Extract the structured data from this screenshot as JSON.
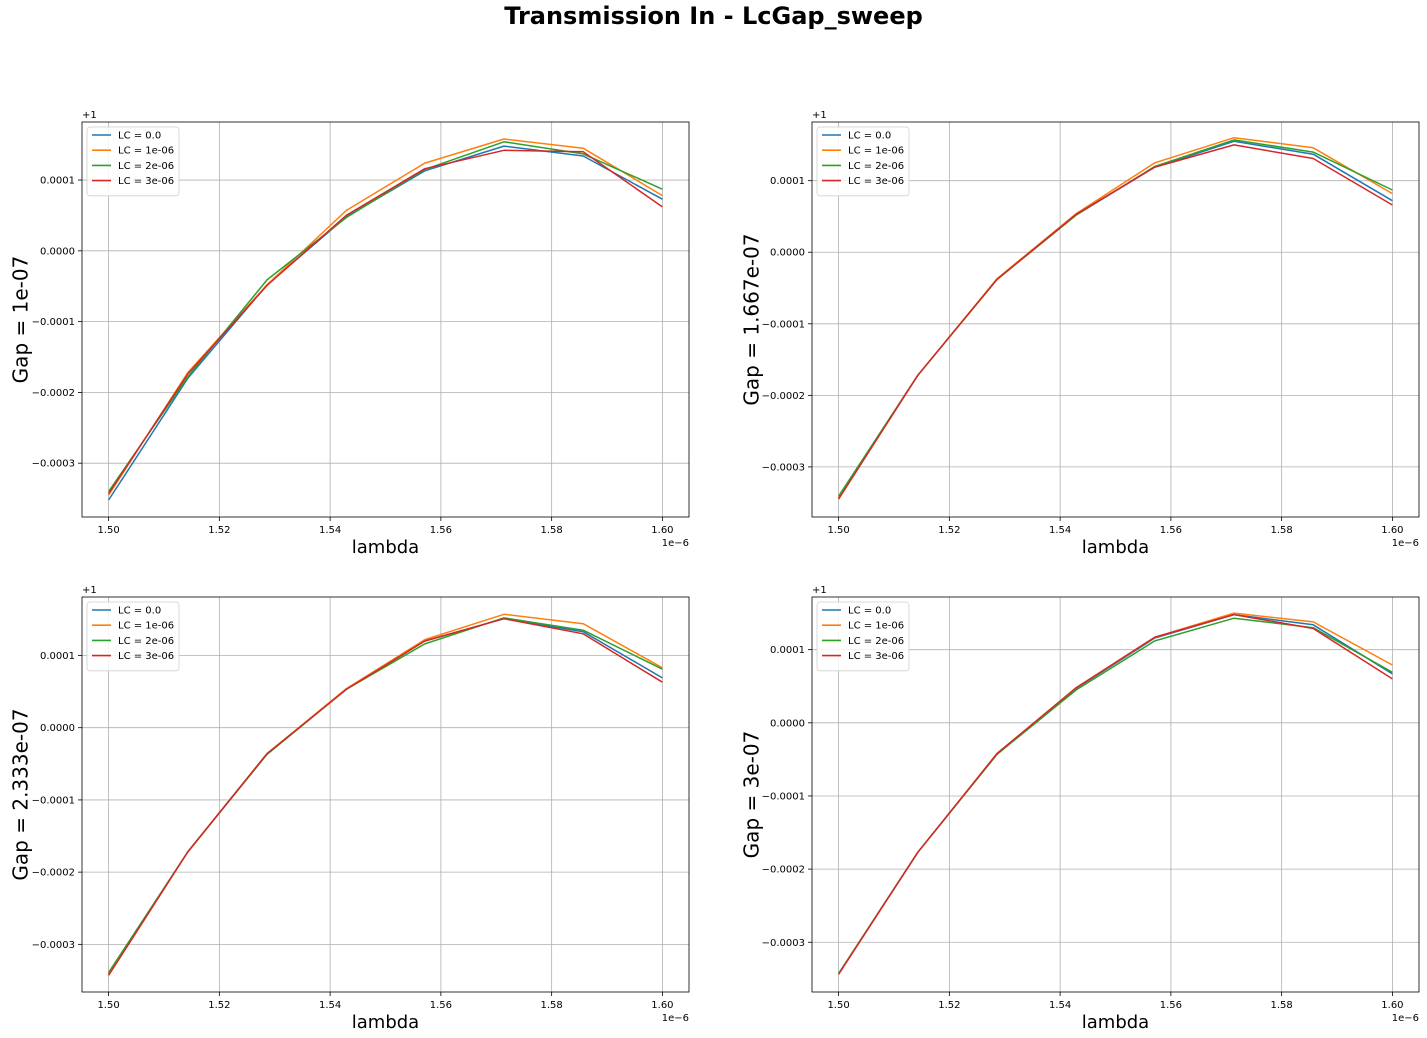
{
  "figure": {
    "title": "Transmission In - LcGap_sweep"
  },
  "colors": {
    "series": [
      "#1f77b4",
      "#ff7f0e",
      "#2ca02c",
      "#d62728"
    ],
    "grid": "#b0b0b0",
    "axes": "#000000",
    "background": "#ffffff"
  },
  "chart_data": [
    {
      "type": "line",
      "xlabel": "lambda",
      "ylabel": "Gap = 1e-07",
      "x_offset_text": "1e−6",
      "y_offset_text": "+1",
      "xlim": [
        1.4952,
        1.6048
      ],
      "ylim": [
        -0.000376,
        0.000182
      ],
      "xticks": [
        1.5,
        1.52,
        1.54,
        1.56,
        1.58,
        1.6
      ],
      "xtick_labels": [
        "1.50",
        "1.52",
        "1.54",
        "1.56",
        "1.58",
        "1.60"
      ],
      "yticks": [
        -0.0003,
        -0.0002,
        -0.0001,
        0.0,
        0.0001
      ],
      "ytick_labels": [
        "−0.0003",
        "−0.0002",
        "−0.0001",
        "0.0000",
        "0.0001"
      ],
      "grid": true,
      "legend_position": "upper-left",
      "x": [
        1.5,
        1.5143,
        1.5286,
        1.5429,
        1.5571,
        1.5714,
        1.5857,
        1.6
      ],
      "series": [
        {
          "name": "LC = 0.0",
          "values": [
            -0.000352,
            -0.00018,
            -4.8e-05,
            4.8e-05,
            0.000113,
            0.000148,
            0.000134,
            7.3e-05
          ]
        },
        {
          "name": "LC = 1e-06",
          "values": [
            -0.000345,
            -0.000172,
            -4.8e-05,
            5.7e-05,
            0.000124,
            0.000158,
            0.000145,
            7.8e-05
          ]
        },
        {
          "name": "LC = 2e-06",
          "values": [
            -0.00034,
            -0.000178,
            -4.1e-05,
            4.7e-05,
            0.000115,
            0.000154,
            0.000137,
            8.7e-05
          ]
        },
        {
          "name": "LC = 3e-06",
          "values": [
            -0.000343,
            -0.000174,
            -4.9e-05,
            5e-05,
            0.000116,
            0.000142,
            0.00014,
            6.2e-05
          ]
        }
      ]
    },
    {
      "type": "line",
      "xlabel": "lambda",
      "ylabel": "Gap = 1.667e-07",
      "x_offset_text": "1e−6",
      "y_offset_text": "+1",
      "xlim": [
        1.4952,
        1.6048
      ],
      "ylim": [
        -0.00037,
        0.000182
      ],
      "xticks": [
        1.5,
        1.52,
        1.54,
        1.56,
        1.58,
        1.6
      ],
      "xtick_labels": [
        "1.50",
        "1.52",
        "1.54",
        "1.56",
        "1.58",
        "1.60"
      ],
      "yticks": [
        -0.0003,
        -0.0002,
        -0.0001,
        0.0,
        0.0001
      ],
      "ytick_labels": [
        "−0.0003",
        "−0.0002",
        "−0.0001",
        "0.0000",
        "0.0001"
      ],
      "grid": true,
      "legend_position": "upper-left",
      "x": [
        1.5,
        1.5143,
        1.5286,
        1.5429,
        1.5571,
        1.5714,
        1.5857,
        1.6
      ],
      "series": [
        {
          "name": "LC = 0.0",
          "values": [
            -0.000343,
            -0.000172,
            -3.8e-05,
            5.2e-05,
            0.000119,
            0.000155,
            0.000137,
            7.2e-05
          ]
        },
        {
          "name": "LC = 1e-06",
          "values": [
            -0.000342,
            -0.000172,
            -3.7e-05,
            5.4e-05,
            0.000125,
            0.00016,
            0.000146,
            8.2e-05
          ]
        },
        {
          "name": "LC = 2e-06",
          "values": [
            -0.000341,
            -0.000172,
            -3.8e-05,
            5.2e-05,
            0.00012,
            0.000157,
            0.00014,
            8.7e-05
          ]
        },
        {
          "name": "LC = 3e-06",
          "values": [
            -0.000345,
            -0.000172,
            -3.8e-05,
            5.3e-05,
            0.000119,
            0.00015,
            0.000131,
            6.6e-05
          ]
        }
      ]
    },
    {
      "type": "line",
      "xlabel": "lambda",
      "ylabel": "Gap = 2.333e-07",
      "x_offset_text": "1e−6",
      "y_offset_text": "+1",
      "xlim": [
        1.4952,
        1.6048
      ],
      "ylim": [
        -0.000366,
        0.000181
      ],
      "xticks": [
        1.5,
        1.52,
        1.54,
        1.56,
        1.58,
        1.6
      ],
      "xtick_labels": [
        "1.50",
        "1.52",
        "1.54",
        "1.56",
        "1.58",
        "1.60"
      ],
      "yticks": [
        -0.0003,
        -0.0002,
        -0.0001,
        0.0,
        0.0001
      ],
      "ytick_labels": [
        "−0.0003",
        "−0.0002",
        "−0.0001",
        "0.0000",
        "0.0001"
      ],
      "grid": true,
      "legend_position": "upper-left",
      "x": [
        1.5,
        1.5143,
        1.5286,
        1.5429,
        1.5571,
        1.5714,
        1.5857,
        1.6
      ],
      "series": [
        {
          "name": "LC = 0.0",
          "values": [
            -0.000341,
            -0.000172,
            -3.6e-05,
            5.3e-05,
            0.00012,
            0.000151,
            0.000133,
            6.9e-05
          ]
        },
        {
          "name": "LC = 1e-06",
          "values": [
            -0.00034,
            -0.000172,
            -3.6e-05,
            5.4e-05,
            0.000122,
            0.000157,
            0.000144,
            8.3e-05
          ]
        },
        {
          "name": "LC = 2e-06",
          "values": [
            -0.000339,
            -0.000172,
            -3.7e-05,
            5.3e-05,
            0.000116,
            0.000152,
            0.000135,
            8.1e-05
          ]
        },
        {
          "name": "LC = 3e-06",
          "values": [
            -0.000343,
            -0.000172,
            -3.6e-05,
            5.3e-05,
            0.00012,
            0.000151,
            0.00013,
            6.3e-05
          ]
        }
      ]
    },
    {
      "type": "line",
      "xlabel": "lambda",
      "ylabel": "Gap = 3e-07",
      "x_offset_text": "1e−6",
      "y_offset_text": "+1",
      "xlim": [
        1.4952,
        1.6048
      ],
      "ylim": [
        -0.000368,
        0.000172
      ],
      "xticks": [
        1.5,
        1.52,
        1.54,
        1.56,
        1.58,
        1.6
      ],
      "xtick_labels": [
        "1.50",
        "1.52",
        "1.54",
        "1.56",
        "1.58",
        "1.60"
      ],
      "yticks": [
        -0.0003,
        -0.0002,
        -0.0001,
        0.0,
        0.0001
      ],
      "ytick_labels": [
        "−0.0003",
        "−0.0002",
        "−0.0001",
        "0.0000",
        "0.0001"
      ],
      "grid": true,
      "legend_position": "upper-left",
      "x": [
        1.5,
        1.5143,
        1.5286,
        1.5429,
        1.5571,
        1.5714,
        1.5857,
        1.6
      ],
      "series": [
        {
          "name": "LC = 0.0",
          "values": [
            -0.000343,
            -0.000177,
            -4.3e-05,
            4.7e-05,
            0.000116,
            0.000148,
            0.000134,
            6.7e-05
          ]
        },
        {
          "name": "LC = 1e-06",
          "values": [
            -0.000343,
            -0.000177,
            -4.3e-05,
            4.8e-05,
            0.000117,
            0.00015,
            0.000138,
            7.9e-05
          ]
        },
        {
          "name": "LC = 2e-06",
          "values": [
            -0.000343,
            -0.000177,
            -4.3e-05,
            4.5e-05,
            0.000112,
            0.000143,
            0.00013,
            6.9e-05
          ]
        },
        {
          "name": "LC = 3e-06",
          "values": [
            -0.000344,
            -0.000177,
            -4.2e-05,
            4.8e-05,
            0.000117,
            0.000148,
            0.000129,
            6e-05
          ]
        }
      ]
    }
  ]
}
